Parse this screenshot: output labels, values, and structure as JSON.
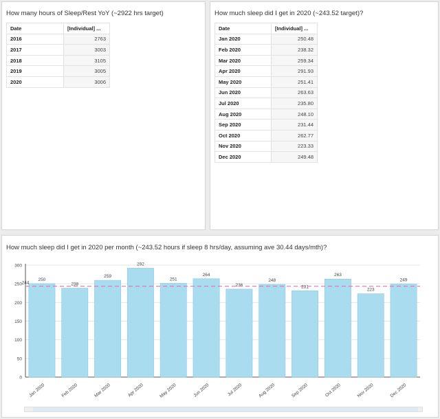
{
  "yoy": {
    "title": "How many hours of Sleep/Rest YoY (~2922 hrs target)",
    "columns": [
      "Date",
      "[Individual] ..."
    ],
    "rows": [
      {
        "label": "2016",
        "value": "2763"
      },
      {
        "label": "2017",
        "value": "3003"
      },
      {
        "label": "2018",
        "value": "3105"
      },
      {
        "label": "2019",
        "value": "3005"
      },
      {
        "label": "2020",
        "value": "3006"
      }
    ]
  },
  "monthly": {
    "title": "How much sleep did I get in 2020 (~243.52 target)?",
    "columns": [
      "Date",
      "[Individual] ..."
    ],
    "rows": [
      {
        "label": "Jan 2020",
        "value": "250.48"
      },
      {
        "label": "Feb 2020",
        "value": "238.32"
      },
      {
        "label": "Mar 2020",
        "value": "259.34"
      },
      {
        "label": "Apr 2020",
        "value": "291.93"
      },
      {
        "label": "May 2020",
        "value": "251.41"
      },
      {
        "label": "Jun 2020",
        "value": "263.63"
      },
      {
        "label": "Jul 2020",
        "value": "235.80"
      },
      {
        "label": "Aug 2020",
        "value": "248.10"
      },
      {
        "label": "Sep 2020",
        "value": "231.44"
      },
      {
        "label": "Oct 2020",
        "value": "262.77"
      },
      {
        "label": "Nov 2020",
        "value": "223.33"
      },
      {
        "label": "Dec 2020",
        "value": "249.48"
      }
    ]
  },
  "chart_data": {
    "type": "bar",
    "title": "How much sleep did I get in 2020 per month (~243.52 hours if sleep 8 hrs/day, assuming ave 30.44 days/mth)?",
    "categories": [
      "Jan 2020",
      "Feb 2020",
      "Mar 2020",
      "Apr 2020",
      "May 2020",
      "Jun 2020",
      "Jul 2020",
      "Aug 2020",
      "Sep 2020",
      "Oct 2020",
      "Nov 2020",
      "Dec 2020"
    ],
    "values": [
      250.48,
      238.32,
      259.34,
      291.93,
      251.41,
      263.63,
      235.8,
      248.1,
      231.44,
      262.77,
      223.33,
      249.48
    ],
    "data_labels": [
      "250",
      "238",
      "259",
      "292",
      "251",
      "264",
      "236",
      "248",
      "231",
      "263",
      "223",
      "249"
    ],
    "y_ticks": [
      0,
      50,
      100,
      150,
      200,
      250,
      300
    ],
    "ylim": [
      0,
      300
    ],
    "reference_line": {
      "value": 243.52,
      "label": "244"
    },
    "xlabel": "",
    "ylabel": "",
    "grid": true,
    "colors": {
      "bar": "#a9dcef",
      "bar_stroke": "#8ec9e2",
      "reference": "#e36fb0",
      "grid": "#e4e4e4",
      "axis": "#555555",
      "text": "#444444"
    }
  }
}
